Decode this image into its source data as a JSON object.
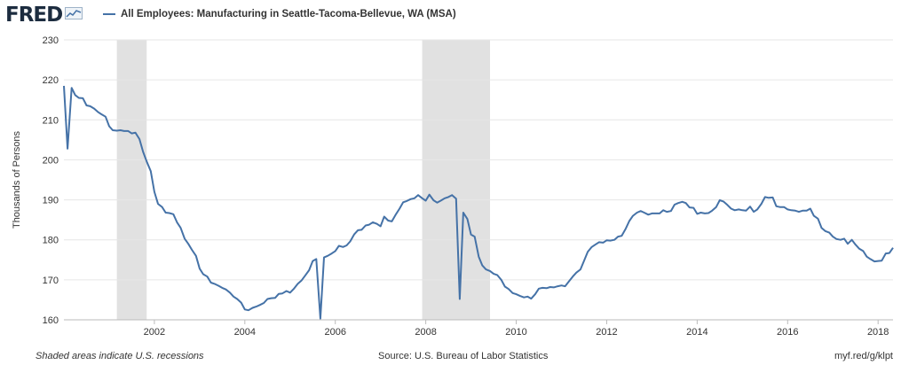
{
  "header": {
    "logo_text": "FRED",
    "logo_icon": "chart-line-icon",
    "legend_label": "All Employees: Manufacturing in Seattle-Tacoma-Bellevue, WA (MSA)"
  },
  "footer": {
    "note": "Shaded areas indicate U.S. recessions",
    "source": "Source: U.S. Bureau of Labor Statistics",
    "link": "myf.red/g/klpt"
  },
  "colors": {
    "series": "#4572a7",
    "recession": "#e1e1e1",
    "grid": "#e6e6e6"
  },
  "chart_data": {
    "type": "line",
    "title": "",
    "ylabel": "Thousands of Persons",
    "xlabel": "",
    "ylim": [
      160,
      230
    ],
    "xlim": [
      2000.0,
      2018.33
    ],
    "yticks": [
      160,
      170,
      180,
      190,
      200,
      210,
      220,
      230
    ],
    "xticks": [
      2002,
      2004,
      2006,
      2008,
      2010,
      2012,
      2014,
      2016,
      2018
    ],
    "grid": true,
    "legend": "top-left",
    "recessions": [
      [
        2001.17,
        2001.83
      ],
      [
        2007.92,
        2009.42
      ]
    ],
    "series": [
      {
        "name": "All Employees: Manufacturing in Seattle-Tacoma-Bellevue, WA (MSA)",
        "points": [
          [
            2000.0,
            218.5
          ],
          [
            2000.08,
            202.8
          ],
          [
            2000.17,
            218.0
          ],
          [
            2000.25,
            216.2
          ],
          [
            2000.33,
            215.5
          ],
          [
            2000.42,
            215.4
          ],
          [
            2000.5,
            213.6
          ],
          [
            2000.58,
            213.4
          ],
          [
            2000.67,
            212.8
          ],
          [
            2000.75,
            212.0
          ],
          [
            2000.83,
            211.4
          ],
          [
            2000.92,
            210.8
          ],
          [
            2001.0,
            208.4
          ],
          [
            2001.08,
            207.4
          ],
          [
            2001.17,
            207.3
          ],
          [
            2001.25,
            207.4
          ],
          [
            2001.33,
            207.2
          ],
          [
            2001.42,
            207.2
          ],
          [
            2001.5,
            206.6
          ],
          [
            2001.58,
            206.8
          ],
          [
            2001.67,
            205.2
          ],
          [
            2001.75,
            202.0
          ],
          [
            2001.83,
            199.6
          ],
          [
            2001.92,
            197.2
          ],
          [
            2002.0,
            192.0
          ],
          [
            2002.08,
            189.0
          ],
          [
            2002.17,
            188.2
          ],
          [
            2002.25,
            186.8
          ],
          [
            2002.33,
            186.7
          ],
          [
            2002.42,
            186.4
          ],
          [
            2002.5,
            184.4
          ],
          [
            2002.58,
            183.0
          ],
          [
            2002.67,
            180.3
          ],
          [
            2002.75,
            179.0
          ],
          [
            2002.83,
            177.5
          ],
          [
            2002.92,
            176.0
          ],
          [
            2003.0,
            172.8
          ],
          [
            2003.08,
            171.4
          ],
          [
            2003.17,
            170.8
          ],
          [
            2003.25,
            169.3
          ],
          [
            2003.33,
            169.0
          ],
          [
            2003.42,
            168.5
          ],
          [
            2003.5,
            168.0
          ],
          [
            2003.58,
            167.6
          ],
          [
            2003.67,
            166.8
          ],
          [
            2003.75,
            165.8
          ],
          [
            2003.83,
            165.2
          ],
          [
            2003.92,
            164.3
          ],
          [
            2004.0,
            162.6
          ],
          [
            2004.08,
            162.4
          ],
          [
            2004.17,
            163.0
          ],
          [
            2004.25,
            163.3
          ],
          [
            2004.33,
            163.7
          ],
          [
            2004.42,
            164.2
          ],
          [
            2004.5,
            165.2
          ],
          [
            2004.58,
            165.4
          ],
          [
            2004.67,
            165.5
          ],
          [
            2004.75,
            166.5
          ],
          [
            2004.83,
            166.6
          ],
          [
            2004.92,
            167.2
          ],
          [
            2005.0,
            166.8
          ],
          [
            2005.08,
            167.7
          ],
          [
            2005.17,
            169.0
          ],
          [
            2005.25,
            169.8
          ],
          [
            2005.33,
            171.0
          ],
          [
            2005.42,
            172.4
          ],
          [
            2005.5,
            174.7
          ],
          [
            2005.58,
            175.2
          ],
          [
            2005.67,
            160.3
          ],
          [
            2005.75,
            175.6
          ],
          [
            2005.83,
            176.0
          ],
          [
            2005.92,
            176.6
          ],
          [
            2006.0,
            177.2
          ],
          [
            2006.08,
            178.5
          ],
          [
            2006.17,
            178.2
          ],
          [
            2006.25,
            178.6
          ],
          [
            2006.33,
            179.6
          ],
          [
            2006.42,
            181.4
          ],
          [
            2006.5,
            182.4
          ],
          [
            2006.58,
            182.5
          ],
          [
            2006.67,
            183.6
          ],
          [
            2006.75,
            183.8
          ],
          [
            2006.83,
            184.4
          ],
          [
            2006.92,
            184.0
          ],
          [
            2007.0,
            183.4
          ],
          [
            2007.08,
            185.8
          ],
          [
            2007.17,
            184.8
          ],
          [
            2007.25,
            184.6
          ],
          [
            2007.33,
            186.2
          ],
          [
            2007.42,
            187.8
          ],
          [
            2007.5,
            189.4
          ],
          [
            2007.58,
            189.7
          ],
          [
            2007.67,
            190.2
          ],
          [
            2007.75,
            190.4
          ],
          [
            2007.83,
            191.2
          ],
          [
            2007.92,
            190.4
          ],
          [
            2008.0,
            189.8
          ],
          [
            2008.08,
            191.3
          ],
          [
            2008.17,
            189.9
          ],
          [
            2008.25,
            189.3
          ],
          [
            2008.33,
            189.8
          ],
          [
            2008.42,
            190.4
          ],
          [
            2008.5,
            190.7
          ],
          [
            2008.58,
            191.2
          ],
          [
            2008.67,
            190.3
          ],
          [
            2008.75,
            165.2
          ],
          [
            2008.83,
            186.8
          ],
          [
            2008.92,
            185.2
          ],
          [
            2009.0,
            181.3
          ],
          [
            2009.08,
            180.8
          ],
          [
            2009.17,
            175.8
          ],
          [
            2009.25,
            173.6
          ],
          [
            2009.33,
            172.6
          ],
          [
            2009.42,
            172.2
          ],
          [
            2009.5,
            171.5
          ],
          [
            2009.58,
            171.2
          ],
          [
            2009.67,
            170.0
          ],
          [
            2009.75,
            168.3
          ],
          [
            2009.83,
            167.7
          ],
          [
            2009.92,
            166.7
          ],
          [
            2010.0,
            166.4
          ],
          [
            2010.08,
            166.0
          ],
          [
            2010.17,
            165.6
          ],
          [
            2010.25,
            165.8
          ],
          [
            2010.33,
            165.3
          ],
          [
            2010.42,
            166.4
          ],
          [
            2010.5,
            167.8
          ],
          [
            2010.58,
            168.0
          ],
          [
            2010.67,
            167.9
          ],
          [
            2010.75,
            168.2
          ],
          [
            2010.83,
            168.1
          ],
          [
            2010.92,
            168.4
          ],
          [
            2011.0,
            168.6
          ],
          [
            2011.08,
            168.4
          ],
          [
            2011.17,
            169.7
          ],
          [
            2011.25,
            170.8
          ],
          [
            2011.33,
            171.8
          ],
          [
            2011.42,
            172.6
          ],
          [
            2011.5,
            174.8
          ],
          [
            2011.58,
            177.0
          ],
          [
            2011.67,
            178.2
          ],
          [
            2011.75,
            178.8
          ],
          [
            2011.83,
            179.4
          ],
          [
            2011.92,
            179.3
          ],
          [
            2012.0,
            179.9
          ],
          [
            2012.08,
            179.8
          ],
          [
            2012.17,
            180.0
          ],
          [
            2012.25,
            180.8
          ],
          [
            2012.33,
            181.0
          ],
          [
            2012.42,
            182.8
          ],
          [
            2012.5,
            184.7
          ],
          [
            2012.58,
            186.0
          ],
          [
            2012.67,
            186.8
          ],
          [
            2012.75,
            187.2
          ],
          [
            2012.83,
            186.8
          ],
          [
            2012.92,
            186.3
          ],
          [
            2013.0,
            186.6
          ],
          [
            2013.08,
            186.6
          ],
          [
            2013.17,
            186.6
          ],
          [
            2013.25,
            187.4
          ],
          [
            2013.33,
            187.0
          ],
          [
            2013.42,
            187.2
          ],
          [
            2013.5,
            188.8
          ],
          [
            2013.58,
            189.2
          ],
          [
            2013.67,
            189.5
          ],
          [
            2013.75,
            189.2
          ],
          [
            2013.83,
            188.1
          ],
          [
            2013.92,
            188.0
          ],
          [
            2014.0,
            186.5
          ],
          [
            2014.08,
            186.8
          ],
          [
            2014.17,
            186.6
          ],
          [
            2014.25,
            186.7
          ],
          [
            2014.33,
            187.3
          ],
          [
            2014.42,
            188.2
          ],
          [
            2014.5,
            189.9
          ],
          [
            2014.58,
            189.6
          ],
          [
            2014.67,
            188.7
          ],
          [
            2014.75,
            187.8
          ],
          [
            2014.83,
            187.4
          ],
          [
            2014.92,
            187.6
          ],
          [
            2015.0,
            187.4
          ],
          [
            2015.08,
            187.3
          ],
          [
            2015.17,
            188.3
          ],
          [
            2015.25,
            187.0
          ],
          [
            2015.33,
            187.6
          ],
          [
            2015.42,
            189.0
          ],
          [
            2015.5,
            190.7
          ],
          [
            2015.58,
            190.5
          ],
          [
            2015.67,
            190.6
          ],
          [
            2015.75,
            188.4
          ],
          [
            2015.83,
            188.2
          ],
          [
            2015.92,
            188.2
          ],
          [
            2016.0,
            187.6
          ],
          [
            2016.08,
            187.4
          ],
          [
            2016.17,
            187.3
          ],
          [
            2016.25,
            187.0
          ],
          [
            2016.33,
            187.3
          ],
          [
            2016.42,
            187.3
          ],
          [
            2016.5,
            187.8
          ],
          [
            2016.58,
            186.0
          ],
          [
            2016.67,
            185.3
          ],
          [
            2016.75,
            183.0
          ],
          [
            2016.83,
            182.2
          ],
          [
            2016.92,
            181.8
          ],
          [
            2017.0,
            180.8
          ],
          [
            2017.08,
            180.2
          ],
          [
            2017.17,
            180.0
          ],
          [
            2017.25,
            180.3
          ],
          [
            2017.33,
            179.0
          ],
          [
            2017.42,
            180.0
          ],
          [
            2017.5,
            178.8
          ],
          [
            2017.58,
            177.8
          ],
          [
            2017.67,
            177.2
          ],
          [
            2017.75,
            175.8
          ],
          [
            2017.83,
            175.2
          ],
          [
            2017.92,
            174.6
          ],
          [
            2018.0,
            174.7
          ],
          [
            2018.08,
            174.8
          ],
          [
            2018.17,
            176.6
          ],
          [
            2018.25,
            176.7
          ],
          [
            2018.33,
            178.0
          ]
        ]
      }
    ]
  }
}
